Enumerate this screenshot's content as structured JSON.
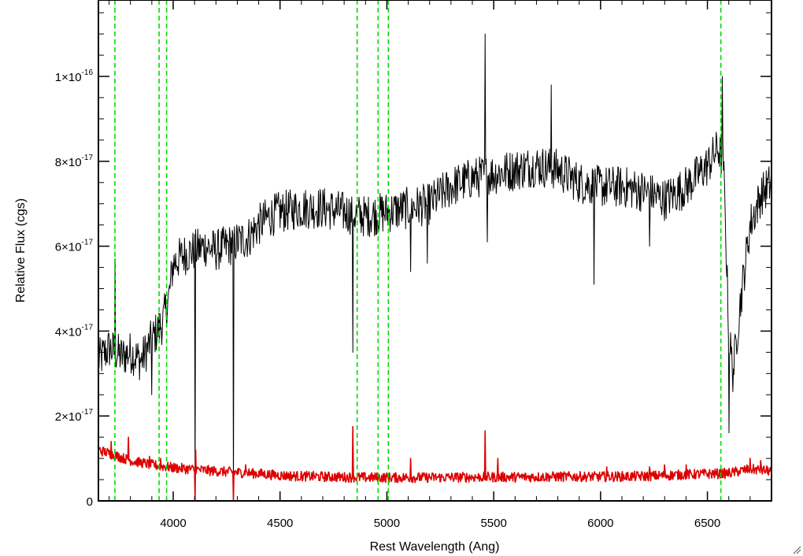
{
  "chart_data": {
    "type": "line",
    "title": "",
    "xlabel": "Rest Wavelength (Ang)",
    "ylabel": "Relative Flux (cgs)",
    "xlim": [
      3650,
      6800
    ],
    "ylim": [
      0,
      1.18e-16
    ],
    "x_ticks": [
      {
        "value": 4000,
        "label": "4000"
      },
      {
        "value": 4500,
        "label": "4500"
      },
      {
        "value": 5000,
        "label": "5000"
      },
      {
        "value": 5500,
        "label": "5500"
      },
      {
        "value": 6000,
        "label": "6000"
      },
      {
        "value": 6500,
        "label": "6500"
      }
    ],
    "y_ticks": [
      {
        "value": 0,
        "mantissa": "0",
        "exponent": ""
      },
      {
        "value": 2e-17,
        "mantissa": "2×10",
        "exponent": "-17"
      },
      {
        "value": 4e-17,
        "mantissa": "4×10",
        "exponent": "-17"
      },
      {
        "value": 6e-17,
        "mantissa": "6×10",
        "exponent": "-17"
      },
      {
        "value": 8e-17,
        "mantissa": "8×10",
        "exponent": "-17"
      },
      {
        "value": 1e-16,
        "mantissa": "1×10",
        "exponent": "-16"
      }
    ],
    "grid": false,
    "legend": "none",
    "vertical_lines": [
      {
        "x": 3727,
        "color": "#00dd00",
        "style": "dashed"
      },
      {
        "x": 3934,
        "color": "#00dd00",
        "style": "dashed"
      },
      {
        "x": 3969,
        "color": "#00dd00",
        "style": "dashed"
      },
      {
        "x": 4861,
        "color": "#00dd00",
        "style": "dashed"
      },
      {
        "x": 4959,
        "color": "#00dd00",
        "style": "dashed"
      },
      {
        "x": 5007,
        "color": "#00dd00",
        "style": "dashed"
      },
      {
        "x": 6563,
        "color": "#00dd00",
        "style": "dashed"
      }
    ],
    "series": [
      {
        "color": "#000000",
        "noise": 5e-18,
        "points": [
          [
            3650,
            3.3e-17
          ],
          [
            3700,
            3.6e-17
          ],
          [
            3730,
            3.5e-17
          ],
          [
            3760,
            3.4e-17
          ],
          [
            3800,
            3.5e-17
          ],
          [
            3850,
            3.3e-17
          ],
          [
            3900,
            3.8e-17
          ],
          [
            3950,
            4.2e-17
          ],
          [
            3980,
            4.8e-17
          ],
          [
            4000,
            5.6e-17
          ],
          [
            4050,
            5.8e-17
          ],
          [
            4100,
            5.9e-17
          ],
          [
            4150,
            6e-17
          ],
          [
            4200,
            5.9e-17
          ],
          [
            4250,
            6e-17
          ],
          [
            4300,
            6.1e-17
          ],
          [
            4350,
            6.2e-17
          ],
          [
            4400,
            6.5e-17
          ],
          [
            4450,
            6.7e-17
          ],
          [
            4500,
            6.8e-17
          ],
          [
            4600,
            6.9e-17
          ],
          [
            4700,
            6.9e-17
          ],
          [
            4800,
            6.8e-17
          ],
          [
            4900,
            6.7e-17
          ],
          [
            5000,
            6.8e-17
          ],
          [
            5100,
            6.9e-17
          ],
          [
            5200,
            7e-17
          ],
          [
            5300,
            7.4e-17
          ],
          [
            5400,
            7.6e-17
          ],
          [
            5500,
            7.7e-17
          ],
          [
            5600,
            7.8e-17
          ],
          [
            5700,
            7.9e-17
          ],
          [
            5800,
            7.8e-17
          ],
          [
            5900,
            7.5e-17
          ],
          [
            6000,
            7.4e-17
          ],
          [
            6100,
            7.4e-17
          ],
          [
            6200,
            7.3e-17
          ],
          [
            6300,
            7.1e-17
          ],
          [
            6400,
            7.4e-17
          ],
          [
            6500,
            7.9e-17
          ],
          [
            6550,
            8.3e-17
          ],
          [
            6575,
            8e-17
          ],
          [
            6600,
            4e-17
          ],
          [
            6620,
            3e-17
          ],
          [
            6650,
            4.5e-17
          ],
          [
            6700,
            6.5e-17
          ],
          [
            6750,
            7.2e-17
          ],
          [
            6800,
            7.5e-17
          ]
        ],
        "features": [
          [
            3727,
            5.7e-17
          ],
          [
            3900,
            2.5e-17
          ],
          [
            4102,
            0
          ],
          [
            4283,
            0
          ],
          [
            4840,
            3.5e-17
          ],
          [
            5110,
            5.4e-17
          ],
          [
            5190,
            5.6e-17
          ],
          [
            5460,
            1.1e-16
          ],
          [
            5470,
            6.1e-17
          ],
          [
            5770,
            9.8e-17
          ],
          [
            5970,
            5.1e-17
          ],
          [
            6230,
            6e-17
          ],
          [
            6570,
            1e-16
          ],
          [
            6600,
            1.6e-17
          ]
        ]
      },
      {
        "color": "#dd0000",
        "noise": 1.2e-18,
        "points": [
          [
            3650,
            1.2e-17
          ],
          [
            3700,
            1.12e-17
          ],
          [
            3800,
            9.5e-18
          ],
          [
            3900,
            8.5e-18
          ],
          [
            4000,
            7.8e-18
          ],
          [
            4100,
            7.4e-18
          ],
          [
            4200,
            7e-18
          ],
          [
            4300,
            6.7e-18
          ],
          [
            4400,
            6.4e-18
          ],
          [
            4500,
            6e-18
          ],
          [
            4600,
            5.8e-18
          ],
          [
            4700,
            5.7e-18
          ],
          [
            4800,
            5.6e-18
          ],
          [
            4900,
            5.5e-18
          ],
          [
            5000,
            5.5e-18
          ],
          [
            5200,
            5.5e-18
          ],
          [
            5400,
            5.6e-18
          ],
          [
            5600,
            5.6e-18
          ],
          [
            5800,
            5.7e-18
          ],
          [
            6000,
            5.7e-18
          ],
          [
            6200,
            5.8e-18
          ],
          [
            6400,
            6.2e-18
          ],
          [
            6600,
            6.5e-18
          ],
          [
            6700,
            7.5e-18
          ],
          [
            6800,
            7e-18
          ]
        ],
        "features": [
          [
            3710,
            1.4e-17
          ],
          [
            3790,
            1.5e-17
          ],
          [
            3890,
            1.05e-17
          ],
          [
            3940,
            1e-17
          ],
          [
            4102,
            0
          ],
          [
            4105,
            1.2e-17
          ],
          [
            4283,
            0
          ],
          [
            4340,
            8.5e-18
          ],
          [
            4840,
            1.75e-17
          ],
          [
            5110,
            1e-17
          ],
          [
            5460,
            1.65e-17
          ],
          [
            5520,
            1e-17
          ],
          [
            6030,
            8e-18
          ],
          [
            6230,
            8e-18
          ],
          [
            6300,
            8.5e-18
          ],
          [
            6400,
            8.5e-18
          ],
          [
            6700,
            1e-17
          ],
          [
            6750,
            9.5e-18
          ]
        ]
      }
    ]
  },
  "icons": {
    "resize_grip": "resize-grip-icon"
  }
}
